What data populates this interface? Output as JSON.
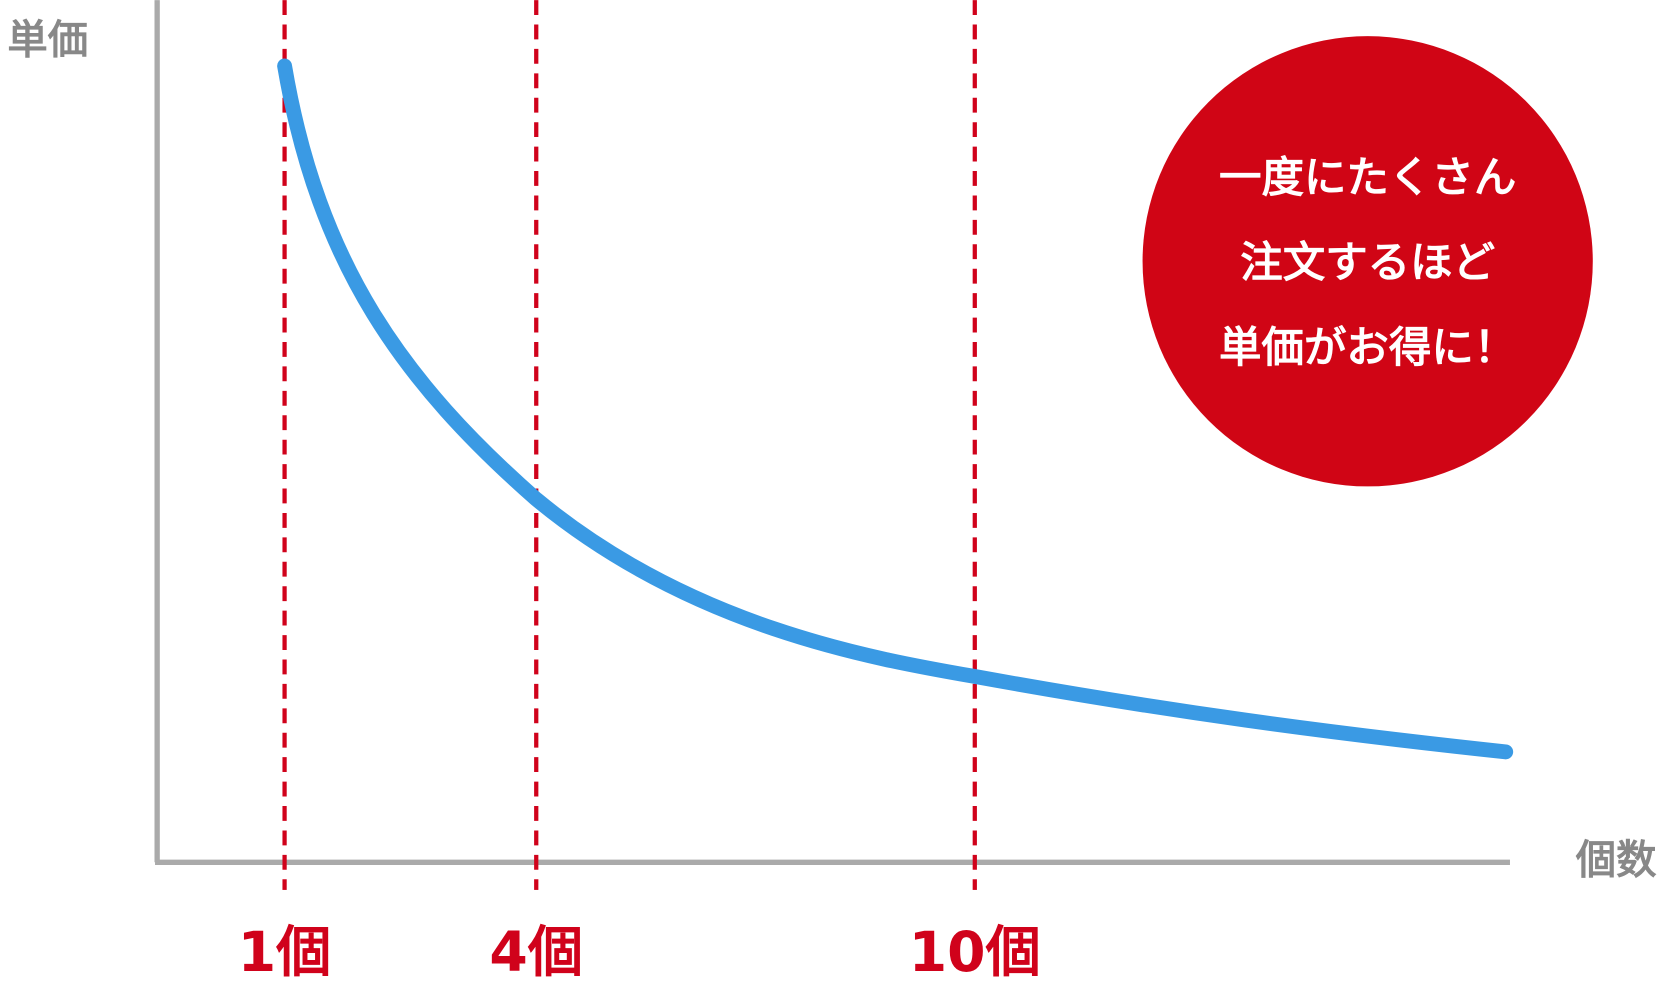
{
  "axes": {
    "y_label": "単価",
    "x_label": "個数"
  },
  "markers": [
    "1個",
    "4個",
    "10個"
  ],
  "callout": {
    "lines": [
      "一度にたくさん",
      "注文するほど",
      "単価がお得に！"
    ]
  }
}
